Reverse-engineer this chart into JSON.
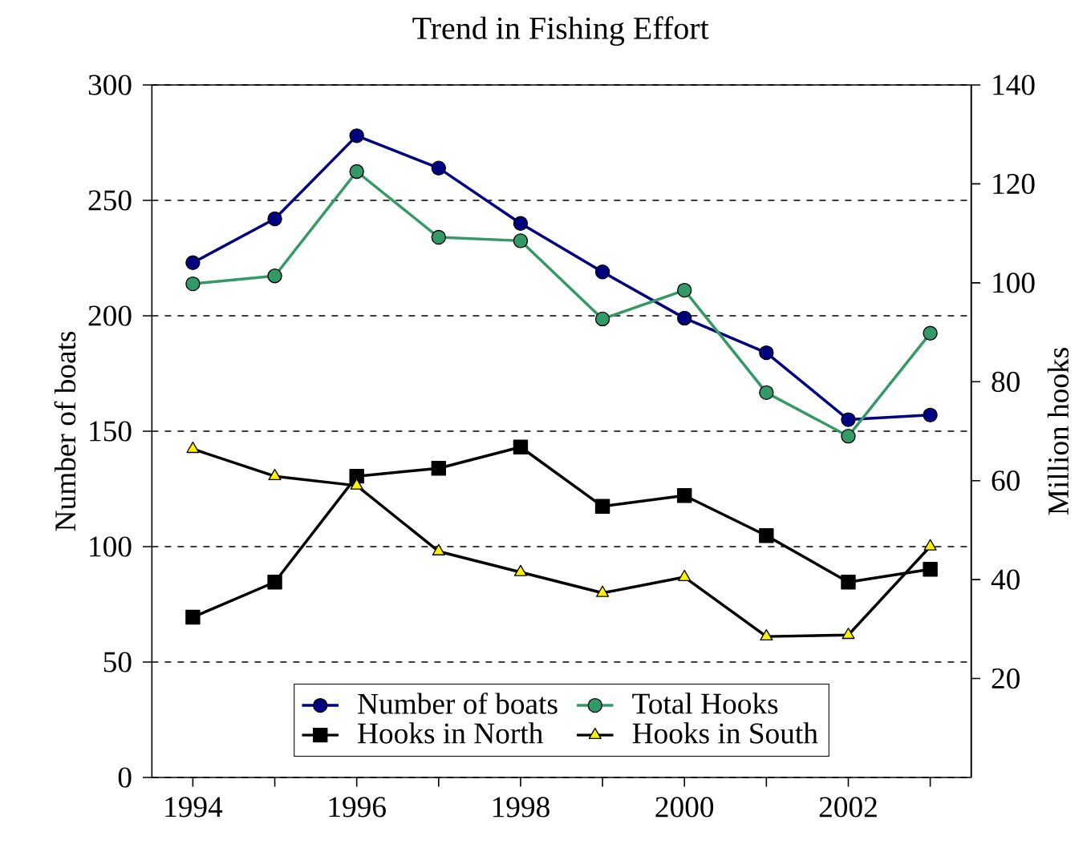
{
  "chart_data": {
    "type": "line",
    "title": "Trend in Fishing Effort",
    "ylabel": "Number of boats",
    "y2label": "Million hooks",
    "categories": [
      "1994",
      null,
      "1996",
      null,
      "1998",
      null,
      "2000",
      null,
      "2002",
      null
    ],
    "ylim": [
      0,
      300
    ],
    "yticks": [
      0,
      50,
      100,
      150,
      200,
      250,
      300
    ],
    "y2lim": [
      0,
      140
    ],
    "y2ticks": [
      20,
      40,
      60,
      80,
      100,
      120,
      140
    ],
    "grid": "y",
    "legend": "bottom",
    "series": [
      {
        "name": "Number of boats",
        "color": "#000080",
        "marker": "circle",
        "values": [
          223,
          242,
          278,
          264,
          240,
          219,
          199,
          184,
          155,
          157
        ]
      },
      {
        "name": "Total Hooks",
        "color": "#339966",
        "marker": "circle",
        "axis": "y2",
        "values": [
          99.8,
          101.4,
          122.5,
          109.2,
          108.5,
          92.7,
          98.5,
          77.8,
          69.0,
          89.8
        ]
      },
      {
        "name": "Hooks in North",
        "color": "#000000",
        "marker": "square",
        "axis": "y2",
        "values": [
          32.4,
          39.5,
          60.9,
          62.5,
          66.8,
          54.8,
          57.0,
          48.9,
          39.5,
          42.1
        ]
      },
      {
        "name": "Hooks in South",
        "color": "#000000",
        "marker": "triangle",
        "axis": "y2",
        "values": [
          66.4,
          60.9,
          59.0,
          45.7,
          41.5,
          37.3,
          40.5,
          28.5,
          28.8,
          46.7
        ]
      }
    ]
  }
}
